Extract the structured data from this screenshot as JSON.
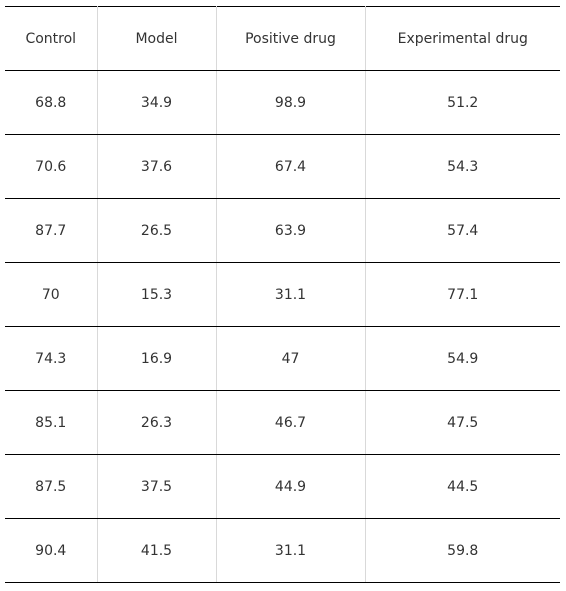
{
  "chart_data": {
    "type": "table",
    "columns": [
      "Control",
      "Model",
      "Positive drug",
      "Experimental drug"
    ],
    "rows": [
      [
        "68.8",
        "34.9",
        "98.9",
        "51.2"
      ],
      [
        "70.6",
        "37.6",
        "67.4",
        "54.3"
      ],
      [
        "87.7",
        "26.5",
        "63.9",
        "57.4"
      ],
      [
        "70",
        "15.3",
        "31.1",
        "77.1"
      ],
      [
        "74.3",
        "16.9",
        "47",
        "54.9"
      ],
      [
        "85.1",
        "26.3",
        "46.7",
        "47.5"
      ],
      [
        "87.5",
        "37.5",
        "44.9",
        "44.5"
      ],
      [
        "90.4",
        "41.5",
        "31.1",
        "59.8"
      ]
    ]
  }
}
